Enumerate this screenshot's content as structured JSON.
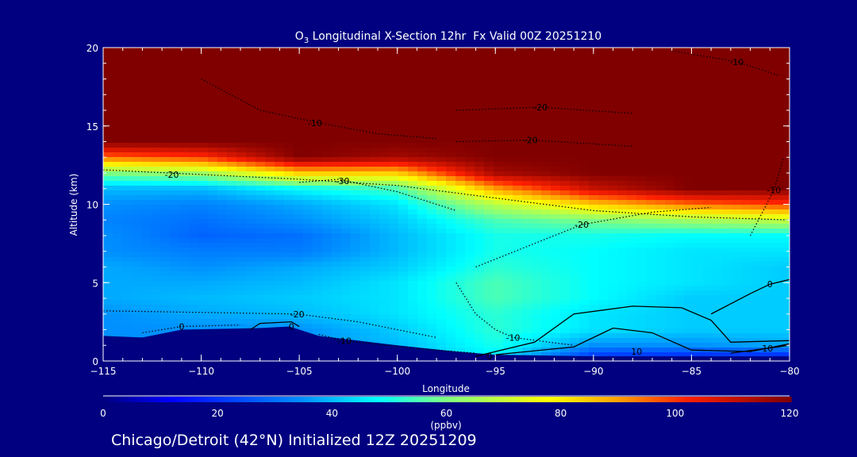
{
  "chart_data": {
    "type": "heatmap",
    "title_prefix": "O",
    "title_sub": "3",
    "title_rest": " Longitudinal X-Section 12hr  Fx Valid 00Z 20251210",
    "xlabel": "Longitude",
    "ylabel": "Altitude (km)",
    "xlim": [
      -115,
      -80
    ],
    "ylim": [
      0,
      20
    ],
    "xticks": [
      -115,
      -110,
      -105,
      -100,
      -95,
      -90,
      -85,
      -80
    ],
    "xtick_labels": [
      "−115",
      "−110",
      "−105",
      "−100",
      "−95",
      "−90",
      "−85",
      "−80"
    ],
    "yticks": [
      0,
      5,
      10,
      15,
      20
    ],
    "ytick_labels": [
      "0",
      "5",
      "10",
      "15",
      "20"
    ],
    "x": [
      -115,
      -110,
      -105,
      -100,
      -95,
      -90,
      -85,
      -80
    ],
    "y": [
      0,
      1,
      2,
      3,
      4,
      5,
      6,
      7,
      8,
      9,
      10,
      11,
      12,
      13,
      14,
      15,
      16,
      17,
      18,
      19,
      20
    ],
    "z_by_column": [
      [
        35,
        35,
        35,
        35,
        38,
        38,
        38,
        35,
        35,
        33,
        35,
        40,
        60,
        95,
        120,
        120,
        120,
        120,
        120,
        120,
        120
      ],
      [
        35,
        35,
        35,
        38,
        40,
        38,
        35,
        32,
        28,
        30,
        33,
        40,
        65,
        100,
        120,
        120,
        120,
        120,
        120,
        120,
        120
      ],
      [
        35,
        35,
        35,
        40,
        42,
        40,
        38,
        32,
        30,
        35,
        38,
        48,
        85,
        120,
        120,
        120,
        120,
        120,
        120,
        120,
        120
      ],
      [
        40,
        40,
        42,
        45,
        45,
        45,
        42,
        40,
        40,
        42,
        45,
        55,
        85,
        115,
        120,
        120,
        120,
        120,
        120,
        120,
        120
      ],
      [
        45,
        50,
        52,
        52,
        55,
        55,
        52,
        50,
        50,
        55,
        68,
        90,
        115,
        120,
        120,
        120,
        120,
        120,
        120,
        120,
        120
      ],
      [
        15,
        35,
        45,
        45,
        48,
        48,
        48,
        48,
        50,
        60,
        85,
        110,
        120,
        120,
        120,
        120,
        120,
        120,
        120,
        120,
        120
      ],
      [
        12,
        35,
        42,
        42,
        42,
        45,
        45,
        45,
        48,
        65,
        95,
        120,
        120,
        120,
        120,
        120,
        120,
        120,
        120,
        120,
        120
      ],
      [
        10,
        38,
        42,
        42,
        42,
        42,
        42,
        45,
        48,
        70,
        100,
        120,
        120,
        120,
        120,
        120,
        120,
        120,
        120,
        120,
        120
      ]
    ],
    "terrain": [
      [
        -115,
        1.6
      ],
      [
        -113,
        1.5
      ],
      [
        -111,
        2.0
      ],
      [
        -107,
        2.1
      ],
      [
        -105.5,
        2.2
      ],
      [
        -104,
        1.6
      ],
      [
        -100,
        1.0
      ],
      [
        -97,
        0.6
      ],
      [
        -95,
        0.4
      ],
      [
        -90,
        0.3
      ],
      [
        -80,
        0.3
      ]
    ],
    "contours": [
      {
        "label": "-20",
        "style": "dotted",
        "label_at": [
          -111.5,
          11.9
        ],
        "points": [
          [
            -115,
            12.2
          ],
          [
            -110,
            11.9
          ],
          [
            -105,
            11.6
          ],
          [
            -100,
            11.2
          ],
          [
            -95,
            10.4
          ],
          [
            -90,
            9.6
          ],
          [
            -85,
            9.2
          ],
          [
            -80,
            9.0
          ]
        ]
      },
      {
        "label": "-30",
        "style": "dotted",
        "label_at": [
          -102.8,
          11.5
        ],
        "points": [
          [
            -105,
            11.4
          ],
          [
            -103,
            11.6
          ],
          [
            -100,
            10.8
          ],
          [
            -97,
            9.6
          ]
        ]
      },
      {
        "label": "-10",
        "style": "dotted",
        "label_at": [
          -104.2,
          15.2
        ],
        "points": [
          [
            -110,
            18
          ],
          [
            -107,
            16
          ],
          [
            -104,
            15.2
          ],
          [
            -101,
            14.5
          ],
          [
            -98,
            14.2
          ]
        ]
      },
      {
        "label": "-20",
        "style": "dotted",
        "label_at": [
          -92.7,
          16.2
        ],
        "points": [
          [
            -97,
            16
          ],
          [
            -92.7,
            16.2
          ],
          [
            -88,
            15.8
          ]
        ]
      },
      {
        "label": "-20",
        "style": "dotted",
        "label_at": [
          -93.2,
          14.1
        ],
        "points": [
          [
            -97,
            14
          ],
          [
            -93.2,
            14.1
          ],
          [
            -88,
            13.7
          ]
        ]
      },
      {
        "label": "-20",
        "style": "dotted",
        "label_at": [
          -90.6,
          8.7
        ],
        "points": [
          [
            -96,
            6
          ],
          [
            -93,
            7.5
          ],
          [
            -90.6,
            8.7
          ],
          [
            -87,
            9.5
          ],
          [
            -84,
            9.8
          ]
        ]
      },
      {
        "label": "-10",
        "style": "dotted",
        "label_at": [
          -82.7,
          19.1
        ],
        "points": [
          [
            -86,
            19.8
          ],
          [
            -82.7,
            19.1
          ],
          [
            -80.5,
            18.2
          ]
        ]
      },
      {
        "label": "-10",
        "style": "dotted",
        "label_at": [
          -80.8,
          10.9
        ],
        "points": [
          [
            -82,
            8
          ],
          [
            -80.8,
            10.9
          ],
          [
            -80.3,
            13
          ]
        ]
      },
      {
        "label": "-20",
        "style": "dotted",
        "label_at": [
          -105.1,
          3.0
        ],
        "points": [
          [
            -115,
            3.2
          ],
          [
            -110,
            3.1
          ],
          [
            -105.1,
            3.0
          ],
          [
            -102,
            2.5
          ],
          [
            -98,
            1.5
          ]
        ]
      },
      {
        "label": "-10",
        "style": "dotted",
        "label_at": [
          -102.7,
          1.3
        ],
        "points": [
          [
            -104,
            1.7
          ],
          [
            -102.7,
            1.3
          ],
          [
            -99,
            0.8
          ],
          [
            -96,
            0.5
          ]
        ]
      },
      {
        "label": "0",
        "style": "dotted",
        "label_at": [
          -111,
          2.2
        ],
        "points": [
          [
            -113,
            1.8
          ],
          [
            -111,
            2.2
          ],
          [
            -108,
            2.3
          ]
        ]
      },
      {
        "label": "-10",
        "style": "dotted",
        "label_at": [
          -94.1,
          1.5
        ],
        "points": [
          [
            -97,
            5
          ],
          [
            -96,
            3
          ],
          [
            -95,
            2
          ],
          [
            -94.1,
            1.5
          ],
          [
            -91,
            1.0
          ]
        ]
      },
      {
        "label": "0",
        "style": "solid",
        "label_at": [
          -105.4,
          2.2
        ],
        "points": [
          [
            -107.5,
            2.0
          ],
          [
            -107,
            2.4
          ],
          [
            -105.4,
            2.5
          ],
          [
            -105,
            2.2
          ]
        ]
      },
      {
        "label": "0",
        "style": "solid",
        "label_at": [
          -95.3,
          0.3
        ],
        "points": [
          [
            -96,
            0.3
          ],
          [
            -93,
            1.2
          ],
          [
            -91,
            3.0
          ],
          [
            -88,
            3.5
          ],
          [
            -85.5,
            3.4
          ],
          [
            -84,
            2.6
          ],
          [
            -83,
            1.2
          ],
          [
            -80,
            1.3
          ]
        ]
      },
      {
        "label": "0",
        "style": "solid",
        "label_at": [
          -81,
          4.9
        ],
        "points": [
          [
            -84,
            3.0
          ],
          [
            -82,
            4.3
          ],
          [
            -81,
            4.9
          ],
          [
            -80,
            5.2
          ]
        ]
      },
      {
        "label": "10",
        "style": "solid",
        "label_at": [
          -87.8,
          0.6
        ],
        "points": [
          [
            -95,
            0.4
          ],
          [
            -91,
            0.9
          ],
          [
            -89,
            2.1
          ],
          [
            -87,
            1.8
          ],
          [
            -85,
            0.7
          ],
          [
            -82,
            0.6
          ],
          [
            -80,
            1.1
          ]
        ]
      },
      {
        "label": "-10",
        "style": "solid",
        "label_at": [
          -81.2,
          0.8
        ],
        "points": [
          [
            -83,
            0.5
          ],
          [
            -81.2,
            0.8
          ],
          [
            -80,
            1.0
          ]
        ]
      }
    ],
    "colorbar": {
      "label": "(ppbv)",
      "range": [
        0,
        120
      ],
      "ticks": [
        0,
        20,
        40,
        60,
        80,
        100,
        120
      ],
      "tick_labels": [
        "0",
        "20",
        "40",
        "60",
        "80",
        "100",
        "120"
      ],
      "stops": [
        [
          0,
          "#000080"
        ],
        [
          12,
          "#0000ff"
        ],
        [
          25,
          "#0050ff"
        ],
        [
          35,
          "#0090ff"
        ],
        [
          48,
          "#00ffff"
        ],
        [
          60,
          "#80ff80"
        ],
        [
          78,
          "#ffff00"
        ],
        [
          90,
          "#ffa000"
        ],
        [
          102,
          "#ff2000"
        ],
        [
          120,
          "#800000"
        ]
      ]
    },
    "background_color": "#000080",
    "caption": "Chicago/Detroit (42°N) Initialized 12Z 20251209"
  }
}
